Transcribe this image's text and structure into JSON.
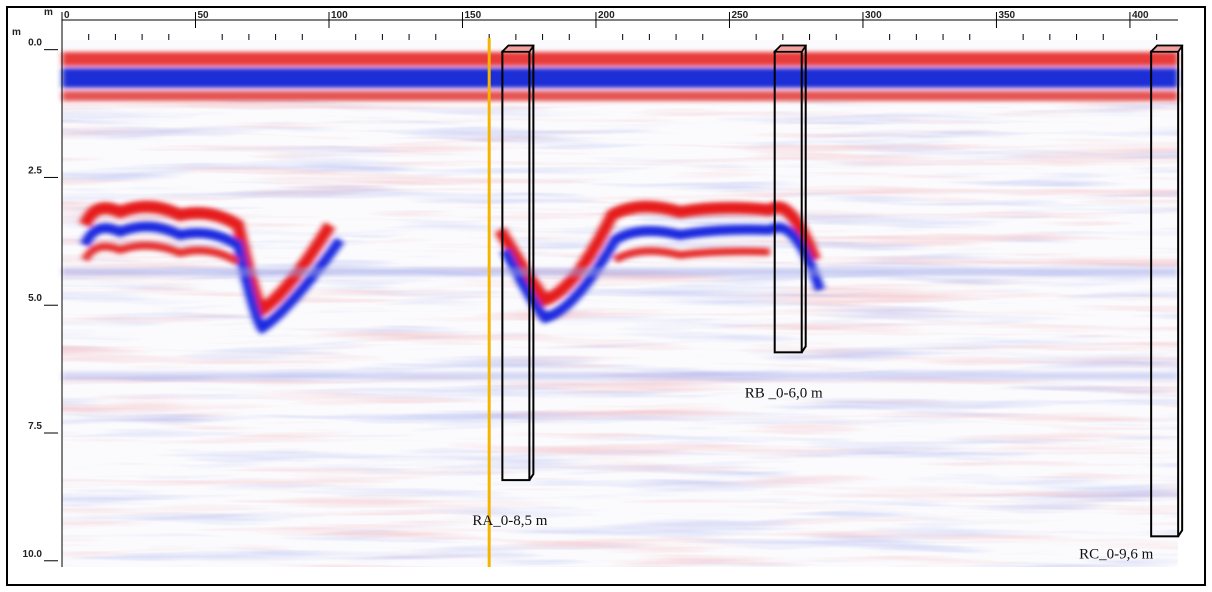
{
  "chart_data": {
    "type": "radargram",
    "x_unit": "m",
    "y_unit": "m",
    "xlim": [
      0,
      418
    ],
    "xticks": [
      0,
      50,
      100,
      150,
      200,
      250,
      300,
      350,
      400
    ],
    "xminorticks": [
      10,
      20,
      30,
      40,
      60,
      70,
      80,
      90,
      110,
      120,
      130,
      140,
      160,
      170,
      180,
      190,
      210,
      220,
      230,
      240,
      260,
      270,
      280,
      290,
      310,
      320,
      330,
      340,
      360,
      370,
      380,
      390,
      410
    ],
    "ylim": [
      -0.15,
      10.2
    ],
    "yticks": [
      {
        "value": 0,
        "label": "0.0"
      },
      {
        "value": 2.5,
        "label": "2.5"
      },
      {
        "value": 5,
        "label": "5.0"
      },
      {
        "value": 7.5,
        "label": "7.5"
      },
      {
        "value": 10,
        "label": "10.0"
      }
    ],
    "marker_line": {
      "x": 160,
      "color": "#f5b400"
    },
    "boreholes": [
      {
        "label": "RA_0-8,5 m",
        "x": 170,
        "depth": 8.5
      },
      {
        "label": "RB _0-6,0 m",
        "x": 272,
        "depth": 6.0
      },
      {
        "label": "RC_0-9,6 m",
        "x": 413,
        "depth": 9.6
      }
    ]
  }
}
